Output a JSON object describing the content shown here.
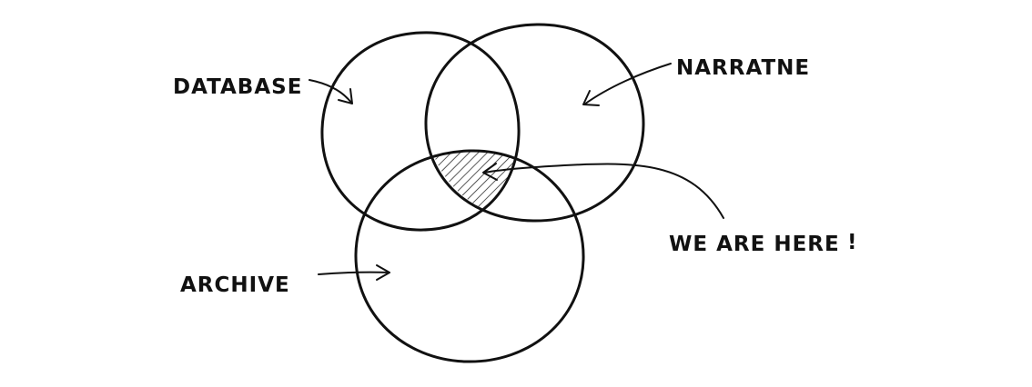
{
  "labels": {
    "database": "DATABASE",
    "narrative": "NARRATNE",
    "archive": "ARCHIVE",
    "here": "WE ARE HERE",
    "exclaim": "!"
  },
  "colors": {
    "ink": "#111111",
    "background": "#ffffff"
  }
}
